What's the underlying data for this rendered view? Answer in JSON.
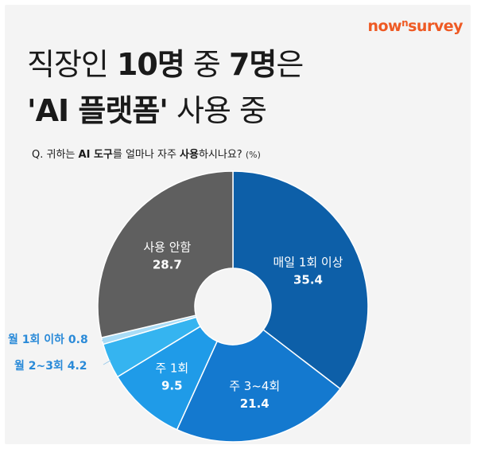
{
  "brand": {
    "name": "now",
    "sup": "n",
    "name2": "survey"
  },
  "headline": {
    "line1_a": "직장인 ",
    "line1_b": "10명",
    "line1_c": " 중 ",
    "line1_d": "7명",
    "line1_e": "은",
    "line2_a": "'AI 플랫폼'",
    "line2_b": " 사용 중"
  },
  "question": {
    "prefix": "Q. 귀하는 ",
    "ai": "AI 도구",
    "mid": "를 얼마나 자주 ",
    "use": "사용",
    "suffix": "하시나요?",
    "unit": "(%)"
  },
  "chart_data": {
    "type": "pie",
    "donut": true,
    "unit": "%",
    "slices": [
      {
        "label": "매일 1회 이상",
        "value": 35.4,
        "color": "#0d5fa8"
      },
      {
        "label": "주 3~4회",
        "value": 21.4,
        "color": "#1479cf"
      },
      {
        "label": "주 1회",
        "value": 9.5,
        "color": "#1f9be8"
      },
      {
        "label": "월 2~3회",
        "value": 4.2,
        "color": "#35b4f0"
      },
      {
        "label": "월 1회 이하",
        "value": 0.8,
        "color": "#a9dcf6"
      },
      {
        "label": "사용 안함",
        "value": 28.7,
        "color": "#5f5f5f"
      }
    ]
  }
}
